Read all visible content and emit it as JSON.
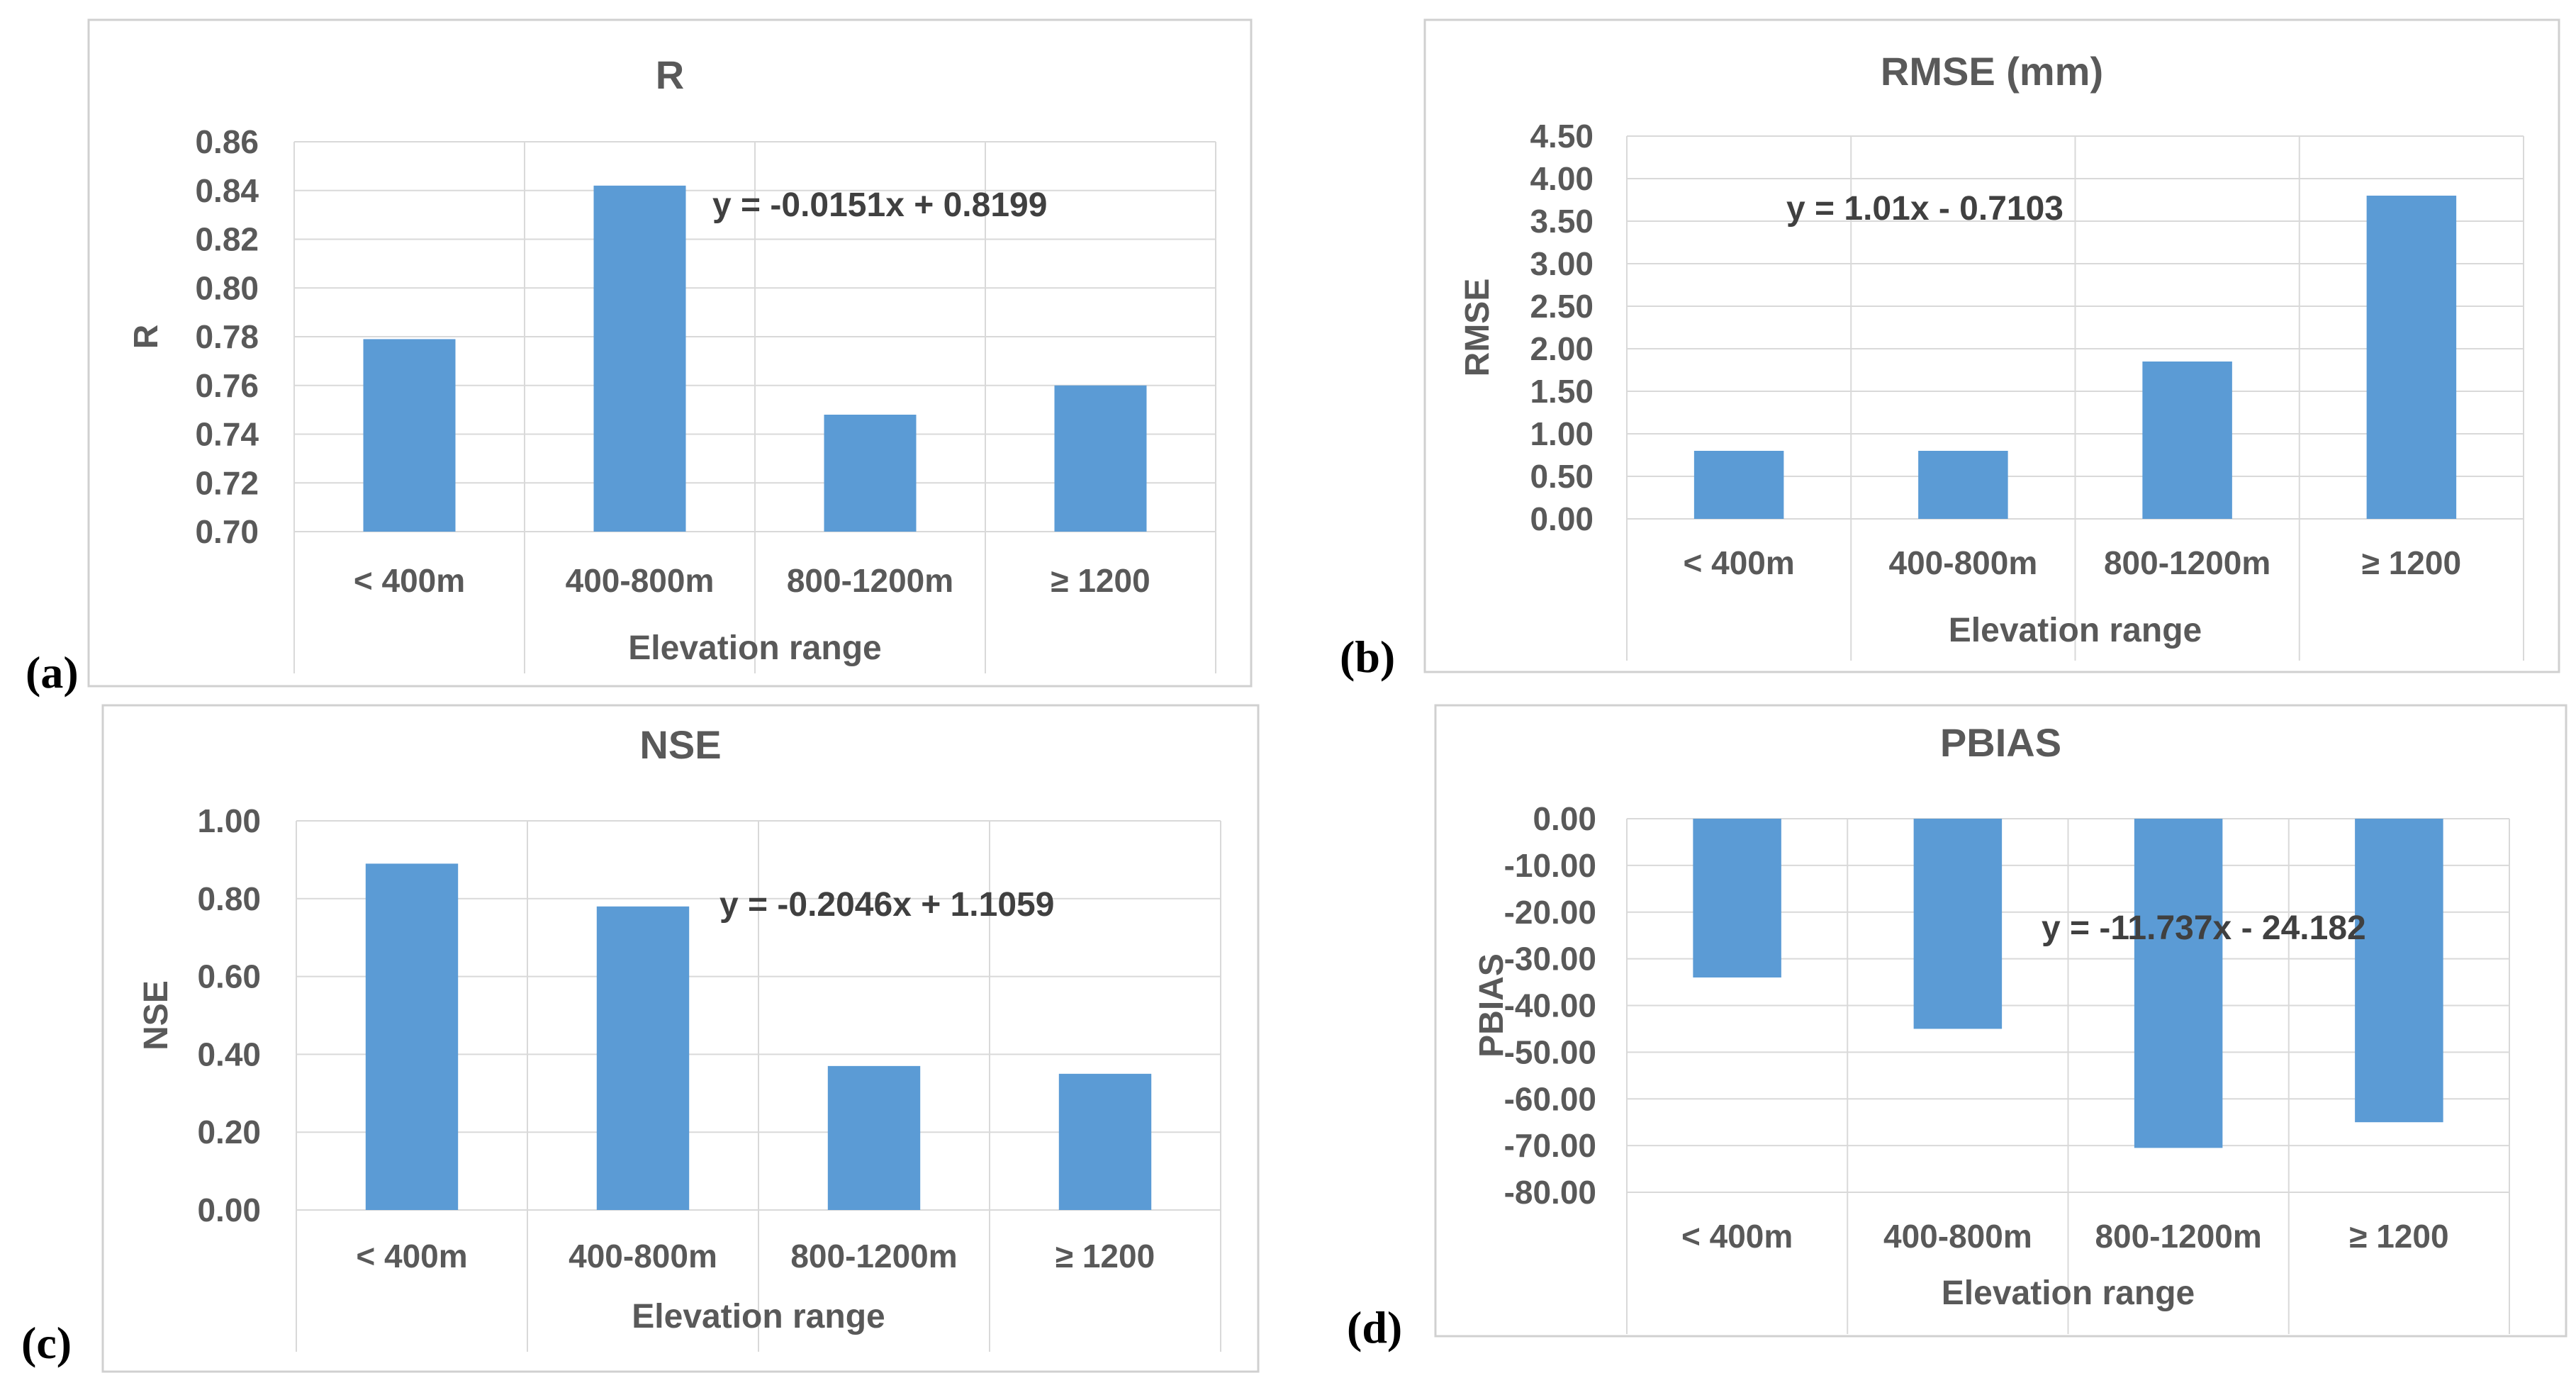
{
  "chart_data": [
    {
      "id": "a",
      "type": "bar",
      "panel_label": "(a)",
      "title": "R",
      "xlabel": "Elevation range",
      "ylabel": "R",
      "categories": [
        "< 400m",
        "400-800m",
        "800-1200m",
        "≥ 1200"
      ],
      "values": [
        0.779,
        0.842,
        0.748,
        0.76
      ],
      "ylim": [
        0.7,
        0.86
      ],
      "yticks": [
        "0.70",
        "0.72",
        "0.74",
        "0.76",
        "0.78",
        "0.80",
        "0.82",
        "0.84",
        "0.86"
      ],
      "trendline_equation": "y = -0.0151x + 0.8199",
      "grid": true
    },
    {
      "id": "b",
      "type": "bar",
      "panel_label": "(b)",
      "title": "RMSE (mm)",
      "xlabel": "Elevation range",
      "ylabel": "RMSE",
      "categories": [
        "< 400m",
        "400-800m",
        "800-1200m",
        "≥ 1200"
      ],
      "values": [
        0.8,
        0.8,
        1.85,
        3.8
      ],
      "ylim": [
        0.0,
        4.5
      ],
      "yticks": [
        "0.00",
        "0.50",
        "1.00",
        "1.50",
        "2.00",
        "2.50",
        "3.00",
        "3.50",
        "4.00",
        "4.50"
      ],
      "trendline_equation": "y = 1.01x - 0.7103",
      "grid": true
    },
    {
      "id": "c",
      "type": "bar",
      "panel_label": "(c)",
      "title": "NSE",
      "xlabel": "Elevation range",
      "ylabel": "NSE",
      "categories": [
        "< 400m",
        "400-800m",
        "800-1200m",
        "≥ 1200"
      ],
      "values": [
        0.89,
        0.78,
        0.37,
        0.35
      ],
      "ylim": [
        0.0,
        1.0
      ],
      "yticks": [
        "0.00",
        "0.20",
        "0.40",
        "0.60",
        "0.80",
        "1.00"
      ],
      "trendline_equation": "y = -0.2046x + 1.1059",
      "grid": true
    },
    {
      "id": "d",
      "type": "bar",
      "panel_label": "(d)",
      "title": "PBIAS",
      "xlabel": "Elevation range",
      "ylabel": "PBIAS",
      "categories": [
        "< 400m",
        "400-800m",
        "800-1200m",
        "≥ 1200"
      ],
      "values": [
        -34.0,
        -45.0,
        -70.5,
        -65.0
      ],
      "ylim": [
        -80.0,
        0.0
      ],
      "yticks": [
        "-80.00",
        "-70.00",
        "-60.00",
        "-50.00",
        "-40.00",
        "-30.00",
        "-20.00",
        "-10.00",
        "0.00"
      ],
      "trendline_equation": "y = -11.737x - 24.182",
      "grid": true
    }
  ]
}
